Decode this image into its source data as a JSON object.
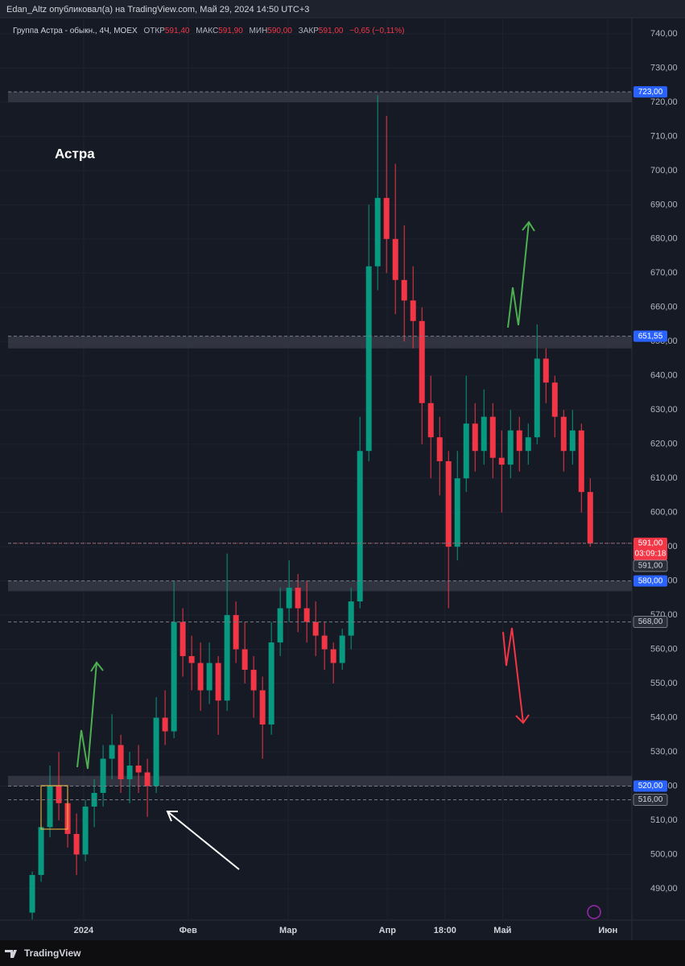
{
  "header": {
    "text": "Edan_Altz опубликовал(а) на TradingView.com, Май 29, 2024 14:50 UTC+3"
  },
  "footer": {
    "brand": "TradingView"
  },
  "chart_data": {
    "type": "candlestick",
    "title": "Астра",
    "symbol": "Группа Астра - обыкн., 4Ч, MOEX",
    "ohlc_legend": {
      "open_label": "ОТКР",
      "open": "591,40",
      "high_label": "МАКС",
      "high": "591,90",
      "low_label": "МИН",
      "low": "590,00",
      "close_label": "ЗАКР",
      "close": "591,00",
      "change": "−0,65 (−0,11%)"
    },
    "up_color": "#089981",
    "down_color": "#f23645",
    "series": [
      {
        "open": [
          483,
          494,
          508,
          520,
          515,
          506,
          500,
          514,
          518,
          528,
          532,
          522,
          526,
          524,
          520,
          540,
          536,
          568,
          558,
          556,
          548,
          556,
          545,
          570,
          560,
          554,
          548,
          538,
          562,
          572,
          578,
          572,
          568,
          564,
          560,
          556,
          564,
          574,
          618,
          672,
          692,
          680,
          668,
          662,
          656,
          632,
          622,
          615,
          590,
          610,
          626,
          618,
          628,
          616,
          614,
          624,
          618,
          622,
          645,
          638,
          628,
          618,
          624,
          606
        ],
        "high": [
          495,
          512,
          526,
          530,
          518,
          512,
          516,
          522,
          532,
          541,
          535,
          530,
          532,
          528,
          546,
          548,
          580,
          572,
          564,
          562,
          562,
          558,
          588,
          574,
          568,
          558,
          552,
          568,
          578,
          586,
          582,
          580,
          574,
          568,
          562,
          566,
          578,
          628,
          690,
          722,
          716,
          702,
          684,
          672,
          660,
          640,
          628,
          618,
          618,
          640,
          632,
          636,
          632,
          624,
          630,
          628,
          626,
          655,
          648,
          640,
          630,
          630,
          626,
          610
        ],
        "low": [
          481,
          492,
          505,
          510,
          502,
          494,
          498,
          508,
          514,
          522,
          518,
          515,
          518,
          511,
          518,
          532,
          534,
          552,
          548,
          542,
          544,
          535,
          542,
          556,
          550,
          540,
          528,
          535,
          558,
          568,
          565,
          562,
          558,
          554,
          550,
          554,
          560,
          572,
          615,
          665,
          670,
          658,
          650,
          648,
          620,
          610,
          605,
          572,
          586,
          606,
          612,
          614,
          610,
          600,
          610,
          612,
          614,
          620,
          632,
          622,
          612,
          614,
          600,
          590
        ],
        "close": [
          494,
          508,
          520,
          515,
          506,
          500,
          514,
          518,
          528,
          532,
          522,
          526,
          524,
          520,
          540,
          536,
          568,
          558,
          556,
          548,
          556,
          545,
          570,
          560,
          554,
          548,
          538,
          562,
          572,
          578,
          572,
          568,
          564,
          560,
          556,
          564,
          574,
          618,
          672,
          692,
          680,
          668,
          662,
          656,
          632,
          622,
          615,
          590,
          610,
          626,
          618,
          628,
          616,
          614,
          624,
          618,
          622,
          645,
          638,
          628,
          618,
          624,
          606,
          591
        ]
      }
    ],
    "xlim": [
      -3.64,
      67.7
    ],
    "xticks": [
      {
        "value": 5.8,
        "label": "2024"
      },
      {
        "value": 17.6,
        "label": "Фев"
      },
      {
        "value": 28.9,
        "label": "Мар"
      },
      {
        "value": 40.1,
        "label": "Апр"
      },
      {
        "value": 46.6,
        "label": "18:00"
      },
      {
        "value": 53.1,
        "label": "Май"
      },
      {
        "value": 65,
        "label": "Июн"
      }
    ],
    "ylim": [
      480.8,
      744.7
    ],
    "yticks": [
      {
        "value": 490,
        "label": "490,00"
      },
      {
        "value": 500,
        "label": "500,00"
      },
      {
        "value": 510,
        "label": "510,00"
      },
      {
        "value": 520,
        "label": "520,00"
      },
      {
        "value": 530,
        "label": "530,00"
      },
      {
        "value": 540,
        "label": "540,00"
      },
      {
        "value": 550,
        "label": "550,00"
      },
      {
        "value": 560,
        "label": "560,00"
      },
      {
        "value": 570,
        "label": "570,00"
      },
      {
        "value": 580,
        "label": "580,00"
      },
      {
        "value": 590,
        "label": "590,00"
      },
      {
        "value": 600,
        "label": "600,00"
      },
      {
        "value": 610,
        "label": "610,00"
      },
      {
        "value": 620,
        "label": "620,00"
      },
      {
        "value": 630,
        "label": "630,00"
      },
      {
        "value": 640,
        "label": "640,00"
      },
      {
        "value": 650,
        "label": "650,00"
      },
      {
        "value": 660,
        "label": "660,00"
      },
      {
        "value": 670,
        "label": "670,00"
      },
      {
        "value": 680,
        "label": "680,00"
      },
      {
        "value": 690,
        "label": "690,00"
      },
      {
        "value": 700,
        "label": "700,00"
      },
      {
        "value": 710,
        "label": "710,00"
      },
      {
        "value": 720,
        "label": "720,00"
      },
      {
        "value": 730,
        "label": "730,00"
      },
      {
        "value": 740,
        "label": "740,00"
      }
    ],
    "zones": [
      [
        720,
        723
      ],
      [
        648,
        651.55
      ],
      [
        577,
        580
      ],
      [
        520,
        523
      ]
    ],
    "levels": [
      {
        "value": 723,
        "label": "723,00",
        "color": "#2962ff"
      },
      {
        "value": 651.55,
        "label": "651,55",
        "color": "#2962ff"
      },
      {
        "value": 591,
        "label": "591,00",
        "color": "#f23645",
        "countdown": "03:09:18"
      },
      {
        "value": 591,
        "label": "591,00",
        "color": "#b2b5be"
      },
      {
        "value": 580,
        "label": "580,00",
        "color": "#2962ff"
      },
      {
        "value": 568,
        "label": "568,00",
        "color": "#b2b5be"
      },
      {
        "value": 520,
        "label": "520,00",
        "color": "#2962ff"
      },
      {
        "value": 516,
        "label": "516,00",
        "color": "#b2b5be"
      }
    ]
  }
}
